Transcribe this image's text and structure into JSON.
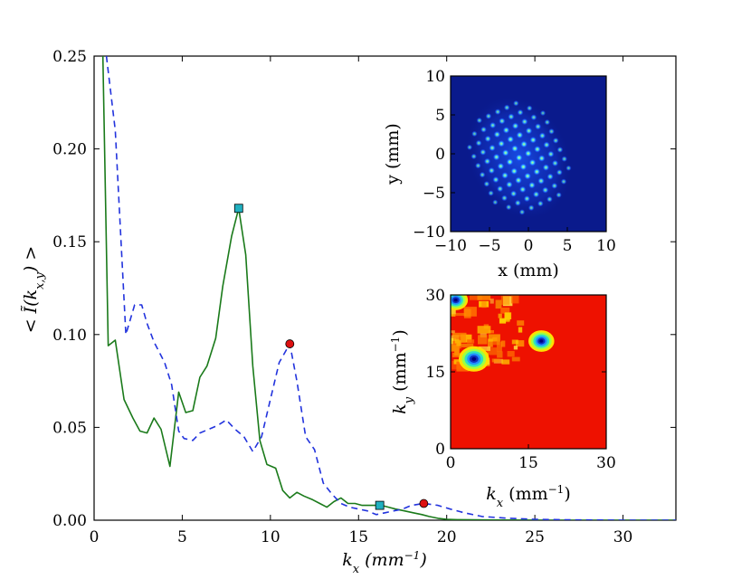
{
  "chart_data": [
    {
      "type": "line",
      "title": "",
      "xlabel": "k_x (mm^-1)",
      "ylabel": "< Ĩ(k_x,y) >",
      "xlim": [
        0,
        33
      ],
      "ylim": [
        0,
        0.25
      ],
      "x_ticks": [
        "0",
        "5",
        "10",
        "15",
        "20",
        "25",
        "30"
      ],
      "y_ticks": [
        "0.00",
        "0.05",
        "0.10",
        "0.15",
        "0.20",
        "0.25"
      ],
      "x_tick_values": [
        0,
        5,
        10,
        15,
        20,
        25,
        30
      ],
      "y_tick_values": [
        0,
        0.05,
        0.1,
        0.15,
        0.2,
        0.25
      ],
      "series": [
        {
          "name": "solid green",
          "color": "#1a7a1a",
          "style": "solid",
          "x": [
            0.5,
            0.8,
            1.2,
            1.7,
            2.2,
            2.6,
            3.0,
            3.4,
            3.8,
            4.3,
            4.8,
            5.2,
            5.6,
            6.0,
            6.4,
            6.9,
            7.3,
            7.8,
            8.2,
            8.6,
            9.0,
            9.4,
            9.8,
            10.3,
            10.7,
            11.1,
            11.5,
            11.9,
            12.4,
            12.8,
            13.2,
            13.6,
            14.0,
            14.4,
            14.8,
            15.2,
            15.6,
            16.0,
            16.3,
            16.7,
            17.1,
            17.6,
            18.1,
            18.6,
            19.0,
            19.5,
            20.0,
            20.6,
            21.5,
            23.0,
            26.0,
            33.0
          ],
          "y": [
            0.25,
            0.094,
            0.097,
            0.065,
            0.055,
            0.048,
            0.047,
            0.055,
            0.049,
            0.029,
            0.069,
            0.058,
            0.059,
            0.077,
            0.083,
            0.098,
            0.126,
            0.153,
            0.168,
            0.143,
            0.083,
            0.043,
            0.03,
            0.028,
            0.016,
            0.012,
            0.015,
            0.013,
            0.011,
            0.009,
            0.007,
            0.01,
            0.012,
            0.009,
            0.009,
            0.008,
            0.008,
            0.008,
            0.008,
            0.007,
            0.006,
            0.005,
            0.004,
            0.003,
            0.002,
            0.001,
            0.0005,
            0.0003,
            0.0002,
            0.0001,
            0.0,
            0.0
          ]
        },
        {
          "name": "dashed blue",
          "color": "#2233dd",
          "style": "dashed",
          "x": [
            0.7,
            1.2,
            1.8,
            2.3,
            2.7,
            3.0,
            3.4,
            4.0,
            4.4,
            4.8,
            5.1,
            5.6,
            6.0,
            6.5,
            7.0,
            7.5,
            8.0,
            8.5,
            9.0,
            9.5,
            10.0,
            10.5,
            11.1,
            11.5,
            12.0,
            12.5,
            13.0,
            13.5,
            14.0,
            14.5,
            15.0,
            15.5,
            16.0,
            16.5,
            17.0,
            17.5,
            18.0,
            18.7,
            19.5,
            20.2,
            21.0,
            22.0,
            23.5,
            25.0,
            27.0,
            30.0,
            33.0
          ],
          "y": [
            0.25,
            0.21,
            0.1,
            0.116,
            0.116,
            0.106,
            0.096,
            0.085,
            0.073,
            0.048,
            0.044,
            0.043,
            0.047,
            0.049,
            0.051,
            0.054,
            0.049,
            0.045,
            0.037,
            0.045,
            0.065,
            0.085,
            0.095,
            0.075,
            0.045,
            0.038,
            0.02,
            0.014,
            0.009,
            0.007,
            0.006,
            0.005,
            0.003,
            0.004,
            0.005,
            0.006,
            0.008,
            0.009,
            0.008,
            0.006,
            0.004,
            0.002,
            0.001,
            0.0005,
            0.0002,
            0.0,
            0.0
          ]
        }
      ],
      "markers": [
        {
          "label": "square",
          "color": "#20b0c0",
          "shape": "square",
          "x": 8.2,
          "y": 0.168
        },
        {
          "label": "square",
          "color": "#20b0c0",
          "shape": "square",
          "x": 16.2,
          "y": 0.008
        },
        {
          "label": "circle",
          "color": "#dd1111",
          "shape": "circle",
          "x": 11.1,
          "y": 0.095
        },
        {
          "label": "circle",
          "color": "#dd1111",
          "shape": "circle",
          "x": 18.7,
          "y": 0.009
        }
      ]
    },
    {
      "type": "heatmap",
      "title": "",
      "xlabel": "x (mm)",
      "ylabel": "y (mm)",
      "xlim": [
        -10,
        10
      ],
      "ylim": [
        -10,
        10
      ],
      "x_ticks": [
        "−10",
        "−5",
        "0",
        "5",
        "10"
      ],
      "y_ticks": [
        "−10",
        "−5",
        "0",
        "5",
        "10"
      ],
      "x_tick_values": [
        -10,
        -5,
        0,
        5,
        10
      ],
      "y_tick_values": [
        -10,
        -5,
        0,
        5,
        10
      ],
      "description_color": "#0a1a8c",
      "spot_spacing_mm": 1.3,
      "spot_region": {
        "center": [
          -1.2,
          -0.5
        ],
        "radii_mm": [
          6.2,
          8.0
        ],
        "rotation_deg": -25
      }
    },
    {
      "type": "heatmap",
      "title": "",
      "xlabel": "k_x (mm^-1)",
      "ylabel": "k_y (mm^-1)",
      "xlim": [
        0,
        30
      ],
      "ylim": [
        0,
        30
      ],
      "x_ticks": [
        "0",
        "15",
        "30"
      ],
      "y_ticks": [
        "0",
        "15",
        "30"
      ],
      "x_tick_values": [
        0,
        15,
        30
      ],
      "y_tick_values": [
        0,
        15,
        30
      ],
      "background_color": "#ee1100",
      "features": [
        {
          "kx": 4.5,
          "ky": 17.5,
          "strength": 1.0
        },
        {
          "kx": 17.5,
          "ky": 21.0,
          "strength": 0.85
        },
        {
          "kx": 1.0,
          "ky": 29.0,
          "strength": 0.8
        }
      ]
    }
  ]
}
